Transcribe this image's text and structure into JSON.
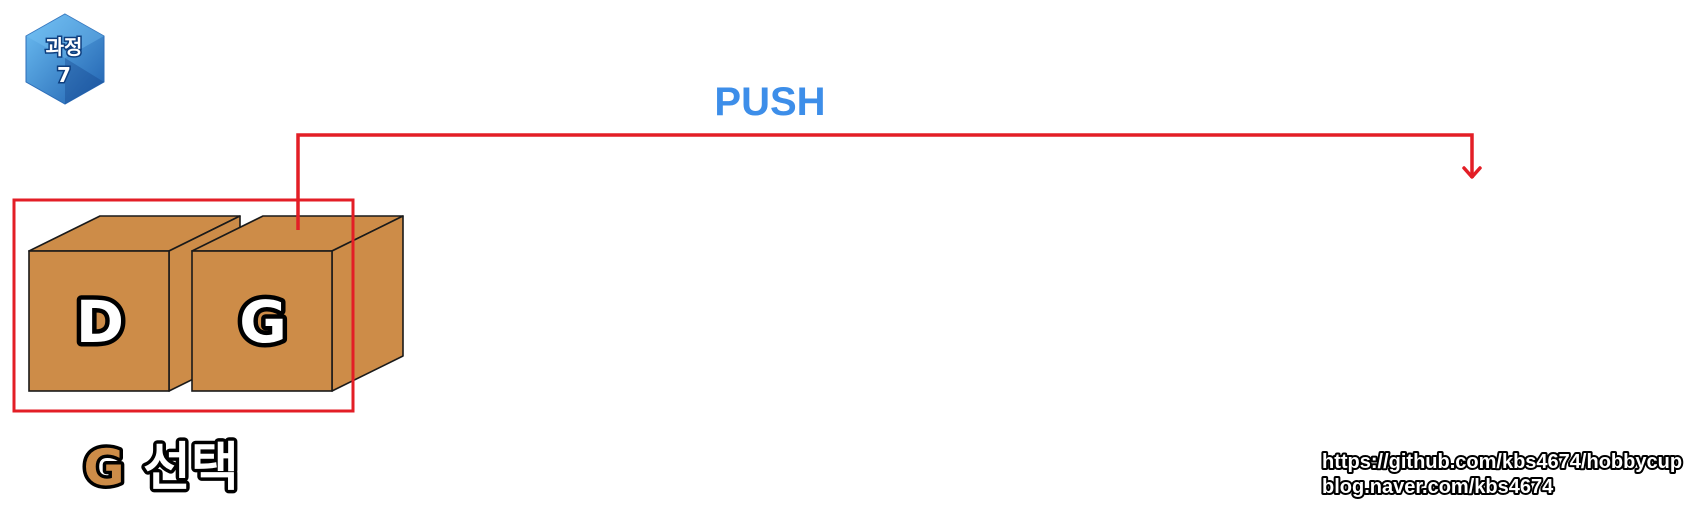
{
  "step_badge": {
    "line1": "과정",
    "line2": "7"
  },
  "push_label": "PUSH",
  "boxes": [
    {
      "letter": "D"
    },
    {
      "letter": "G"
    }
  ],
  "caption": {
    "letter": "G",
    "text": "선택"
  },
  "credits": {
    "line1": "https://github.com/kbs4674/hobbycup",
    "line2": "blog.naver.com/kbs4674"
  },
  "colors": {
    "box_fill": "#CD8C48",
    "box_stroke": "#1A1A1A",
    "selection_frame": "#E31E26",
    "push_arrow": "#E31E26",
    "push_text": "#3D8EE9",
    "badge_dark": "#1E64B4",
    "badge_light": "#55A8EC"
  }
}
